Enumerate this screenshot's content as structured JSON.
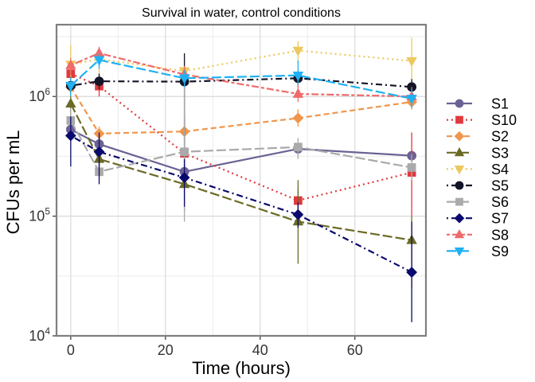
{
  "chart_data": {
    "type": "line",
    "title": "Survival in water, control conditions",
    "xlabel": "Time (hours)",
    "ylabel": "CFUs per mL",
    "xlim": [
      -3,
      75
    ],
    "ylim_log10": [
      4,
      6.6
    ],
    "y_scale": "log10",
    "x_ticks": [
      0,
      20,
      40,
      60
    ],
    "y_ticks": [
      {
        "value": 10000,
        "base": "10",
        "exp": "4"
      },
      {
        "value": 100000,
        "base": "10",
        "exp": "5"
      },
      {
        "value": 1000000,
        "base": "10",
        "exp": "6"
      }
    ],
    "grid": true,
    "legend_position": "right",
    "x": [
      0,
      6,
      24,
      48,
      72
    ],
    "series": [
      {
        "name": "S1",
        "color": "#6b6294",
        "marker": "circle",
        "dash": "solid",
        "values": [
          530000,
          400000,
          235000,
          365000,
          320000
        ],
        "err_low": [
          470000,
          350000,
          200000,
          320000,
          280000
        ],
        "err_high": [
          600000,
          450000,
          270000,
          410000,
          360000
        ]
      },
      {
        "name": "S10",
        "color": "#e0393e",
        "marker": "square",
        "dash": "dotted",
        "values": [
          1550000,
          1220000,
          335000,
          135000,
          232000
        ],
        "err_low": [
          1300000,
          1000000,
          110000,
          110000,
          100000
        ],
        "err_high": [
          1800000,
          1450000,
          700000,
          170000,
          500000
        ]
      },
      {
        "name": "S2",
        "color": "#f0964c",
        "marker": "diamond",
        "dash": "dashed",
        "values": [
          1200000,
          490000,
          510000,
          660000,
          900000
        ],
        "err_low": [
          1000000,
          420000,
          430000,
          560000,
          780000
        ],
        "err_high": [
          1400000,
          560000,
          600000,
          780000,
          1050000
        ]
      },
      {
        "name": "S3",
        "color": "#6b6a25",
        "marker": "triangle-up",
        "dash": "longdash",
        "values": [
          870000,
          300000,
          185000,
          90000,
          63000
        ],
        "err_low": [
          600000,
          250000,
          150000,
          40000,
          25000
        ],
        "err_high": [
          1150000,
          360000,
          220000,
          200000,
          100000
        ]
      },
      {
        "name": "S4",
        "color": "#ecc85e",
        "marker": "triangle-down",
        "dash": "dotted",
        "values": [
          1850000,
          2050000,
          1630000,
          2420000,
          1980000
        ],
        "err_low": [
          1200000,
          1500000,
          1000000,
          1900000,
          1000000
        ],
        "err_high": [
          2700000,
          2500000,
          2200000,
          2900000,
          3100000
        ]
      },
      {
        "name": "S5",
        "color": "#141428",
        "marker": "circle",
        "dash": "dotdash",
        "values": [
          1230000,
          1340000,
          1330000,
          1420000,
          1200000
        ],
        "err_low": [
          1050000,
          1150000,
          250000,
          1200000,
          1000000
        ],
        "err_high": [
          1450000,
          1550000,
          2300000,
          1650000,
          1400000
        ]
      },
      {
        "name": "S6",
        "color": "#aaaaaa",
        "marker": "square",
        "dash": "longdash",
        "values": [
          630000,
          235000,
          345000,
          378000,
          255000
        ],
        "err_low": [
          500000,
          200000,
          90000,
          300000,
          200000
        ],
        "err_high": [
          800000,
          280000,
          1300000,
          450000,
          330000
        ]
      },
      {
        "name": "S7",
        "color": "#0a0a6e",
        "marker": "diamond",
        "dash": "dotdash",
        "values": [
          470000,
          345000,
          210000,
          103000,
          34000
        ],
        "err_low": [
          260000,
          185000,
          120000,
          80000,
          13000
        ],
        "err_high": [
          680000,
          500000,
          300000,
          130000,
          90000
        ]
      },
      {
        "name": "S8",
        "color": "#ee6b6b",
        "marker": "triangle-up",
        "dash": "twodash",
        "values": [
          1820000,
          2300000,
          1530000,
          1050000,
          1000000
        ],
        "err_low": [
          1500000,
          2000000,
          1300000,
          900000,
          850000
        ],
        "err_high": [
          2100000,
          2600000,
          1800000,
          1250000,
          1200000
        ]
      },
      {
        "name": "S9",
        "color": "#1fb1f3",
        "marker": "triangle-down",
        "dash": "longdash",
        "values": [
          1230000,
          2020000,
          1420000,
          1500000,
          960000
        ],
        "err_low": [
          1000000,
          1700000,
          1200000,
          1250000,
          800000
        ],
        "err_high": [
          1450000,
          2300000,
          1650000,
          2000000,
          1150000
        ]
      }
    ]
  }
}
